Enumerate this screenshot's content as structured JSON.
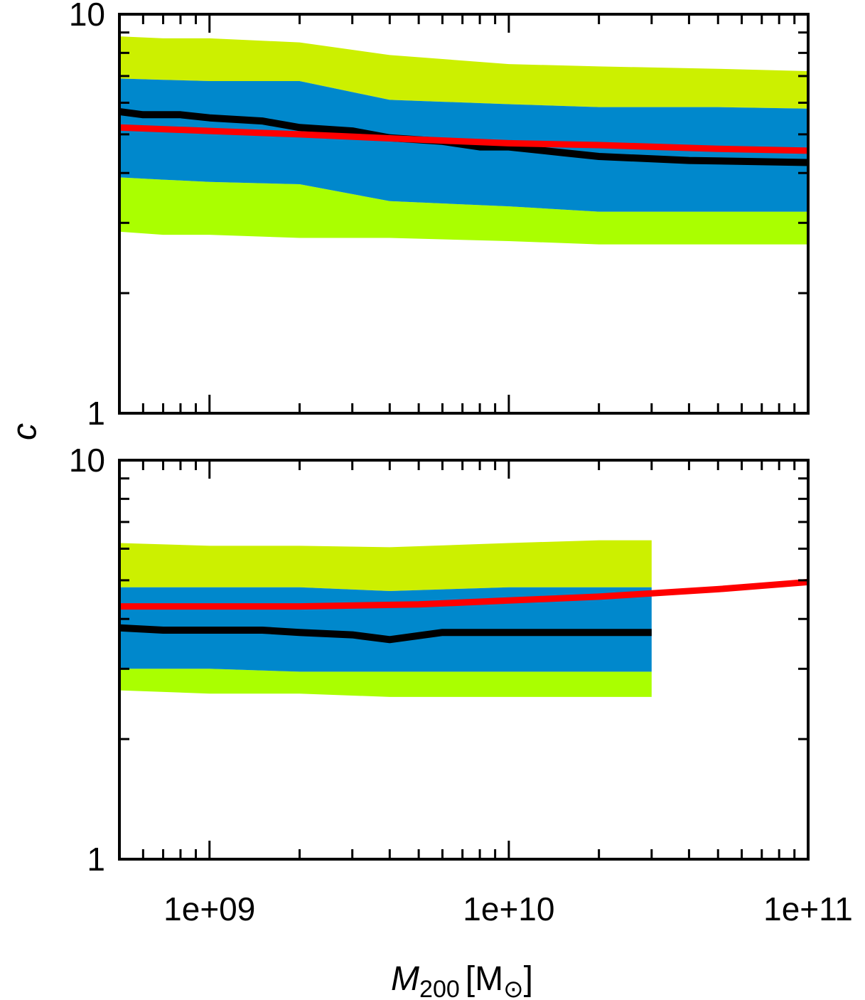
{
  "chart_data": [
    {
      "type": "area",
      "panel": "top",
      "x_scale": "log",
      "y_scale": "log",
      "xlim": [
        500000000.0,
        100000000000.0
      ],
      "ylim": [
        1,
        10
      ],
      "x_ticks": [
        1000000000.0,
        10000000000.0,
        100000000000.0
      ],
      "x_tick_labels": [],
      "y_ticks": [
        1,
        10
      ],
      "y_tick_labels": [
        "1",
        "10"
      ],
      "colors": {
        "outer_band_upper": "#ccf000",
        "outer_band_lower": "#aaff00",
        "inner_band": "#0088cc",
        "median": "#000000",
        "model": "#ff0000"
      },
      "bands": [
        {
          "role": "outer",
          "x": [
            500000000.0,
            700000000.0,
            1000000000.0,
            2000000000.0,
            4000000000.0,
            10000000000.0,
            20000000000.0,
            50000000000.0,
            100000000000.0
          ],
          "upper": [
            8.8,
            8.7,
            8.7,
            8.5,
            7.9,
            7.5,
            7.4,
            7.3,
            7.2
          ],
          "lower": [
            2.85,
            2.8,
            2.8,
            2.75,
            2.75,
            2.7,
            2.65,
            2.65,
            2.65
          ]
        },
        {
          "role": "inner",
          "x": [
            500000000.0,
            700000000.0,
            1000000000.0,
            2000000000.0,
            4000000000.0,
            10000000000.0,
            20000000000.0,
            50000000000.0,
            100000000000.0
          ],
          "upper": [
            6.9,
            6.85,
            6.8,
            6.8,
            6.1,
            5.95,
            5.85,
            5.85,
            5.8
          ],
          "lower": [
            3.9,
            3.85,
            3.8,
            3.75,
            3.4,
            3.3,
            3.2,
            3.2,
            3.2
          ]
        }
      ],
      "series": [
        {
          "role": "median",
          "x": [
            500000000.0,
            600000000.0,
            800000000.0,
            1000000000.0,
            1500000000.0,
            2000000000.0,
            3000000000.0,
            4000000000.0,
            6000000000.0,
            8000000000.0,
            10000000000.0,
            15000000000.0,
            20000000000.0,
            40000000000.0,
            100000000000.0
          ],
          "values": [
            5.7,
            5.6,
            5.6,
            5.5,
            5.4,
            5.2,
            5.1,
            4.9,
            4.8,
            4.65,
            4.65,
            4.5,
            4.4,
            4.3,
            4.25
          ]
        },
        {
          "role": "model",
          "x": [
            500000000.0,
            1000000000.0,
            2000000000.0,
            5000000000.0,
            10000000000.0,
            20000000000.0,
            50000000000.0,
            100000000000.0
          ],
          "values": [
            5.2,
            5.1,
            5.0,
            4.85,
            4.75,
            4.7,
            4.6,
            4.55
          ]
        }
      ]
    },
    {
      "type": "area",
      "panel": "bottom",
      "x_scale": "log",
      "y_scale": "log",
      "xlim": [
        500000000.0,
        100000000000.0
      ],
      "ylim": [
        1,
        10
      ],
      "x_ticks": [
        1000000000.0,
        10000000000.0,
        100000000000.0
      ],
      "x_tick_labels": [
        "1e+09",
        "1e+10",
        "1e+11"
      ],
      "y_ticks": [
        1,
        10
      ],
      "y_tick_labels": [
        "1",
        "10"
      ],
      "colors": {
        "outer_band_upper": "#ccf000",
        "outer_band_lower": "#aaff00",
        "inner_band": "#0088cc",
        "median": "#000000",
        "model": "#ff0000"
      },
      "bands": [
        {
          "role": "outer",
          "x": [
            500000000.0,
            1000000000.0,
            2000000000.0,
            4000000000.0,
            10000000000.0,
            20000000000.0,
            30000000000.0
          ],
          "upper": [
            6.2,
            6.1,
            6.1,
            6.05,
            6.2,
            6.3,
            6.3
          ],
          "lower": [
            2.65,
            2.6,
            2.6,
            2.55,
            2.55,
            2.55,
            2.55
          ]
        },
        {
          "role": "inner",
          "x": [
            500000000.0,
            1000000000.0,
            2000000000.0,
            4000000000.0,
            10000000000.0,
            20000000000.0,
            30000000000.0
          ],
          "upper": [
            4.8,
            4.8,
            4.8,
            4.7,
            4.8,
            4.8,
            4.8
          ],
          "lower": [
            3.0,
            3.0,
            2.95,
            2.95,
            2.95,
            2.95,
            2.95
          ]
        }
      ],
      "series": [
        {
          "role": "median",
          "x": [
            500000000.0,
            700000000.0,
            1000000000.0,
            1500000000.0,
            2000000000.0,
            3000000000.0,
            4000000000.0,
            6000000000.0,
            10000000000.0,
            20000000000.0,
            30000000000.0
          ],
          "values": [
            3.8,
            3.75,
            3.75,
            3.75,
            3.7,
            3.65,
            3.55,
            3.7,
            3.7,
            3.7,
            3.7
          ]
        },
        {
          "role": "model",
          "x": [
            500000000.0,
            1000000000.0,
            2000000000.0,
            5000000000.0,
            10000000000.0,
            20000000000.0,
            50000000000.0,
            100000000000.0
          ],
          "values": [
            4.3,
            4.3,
            4.3,
            4.35,
            4.45,
            4.55,
            4.75,
            4.95
          ]
        }
      ]
    }
  ],
  "axes": {
    "ylabel": "c",
    "xlabel_main": "M",
    "xlabel_sub": "200",
    "xlabel_unit_open": "[M",
    "xlabel_unit_sym": "⊙",
    "xlabel_unit_close": "]"
  }
}
